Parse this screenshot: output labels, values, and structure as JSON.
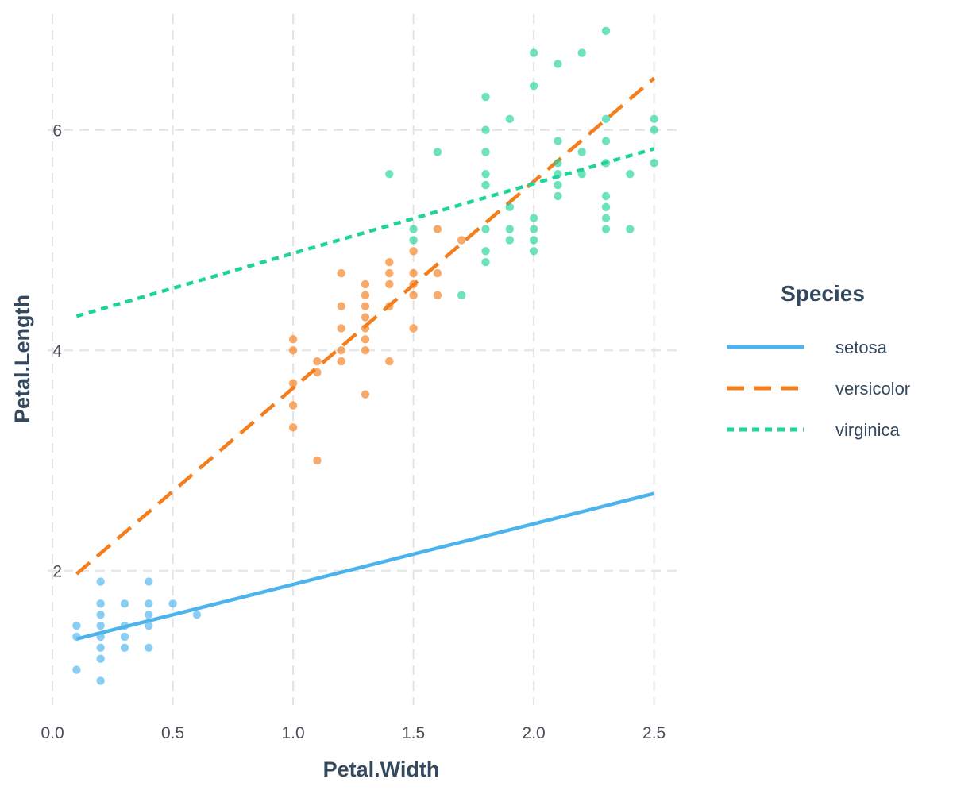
{
  "chart_data": {
    "type": "scatter",
    "title": "",
    "xlabel": "Petal.Width",
    "ylabel": "Petal.Length",
    "xlim": [
      -0.02,
      2.62
    ],
    "ylim": [
      0.78,
      7.05
    ],
    "x_ticks": [
      {
        "value": 0.0,
        "label": "0.0"
      },
      {
        "value": 0.5,
        "label": "0.5"
      },
      {
        "value": 1.0,
        "label": "1.0"
      },
      {
        "value": 1.5,
        "label": "1.5"
      },
      {
        "value": 2.0,
        "label": "2.0"
      },
      {
        "value": 2.5,
        "label": "2.5"
      }
    ],
    "y_ticks": [
      {
        "value": 2,
        "label": "2"
      },
      {
        "value": 4,
        "label": "4"
      },
      {
        "value": 6,
        "label": "6"
      }
    ],
    "grid": true,
    "grid_style": "dashed",
    "legend": {
      "title": "Species",
      "position": "right"
    },
    "series": [
      {
        "name": "setosa",
        "color": "#4db3ed",
        "line_style": "solid",
        "trend_line": {
          "x": [
            0.1,
            2.5
          ],
          "y": [
            1.38,
            2.7
          ]
        },
        "points": [
          [
            0.1,
            1.5
          ],
          [
            0.1,
            1.4
          ],
          [
            0.1,
            1.1
          ],
          [
            0.2,
            1.9
          ],
          [
            0.2,
            1.7
          ],
          [
            0.2,
            1.6
          ],
          [
            0.2,
            1.5
          ],
          [
            0.2,
            1.4
          ],
          [
            0.2,
            1.3
          ],
          [
            0.2,
            1.2
          ],
          [
            0.2,
            1.0
          ],
          [
            0.3,
            1.7
          ],
          [
            0.3,
            1.5
          ],
          [
            0.3,
            1.4
          ],
          [
            0.3,
            1.3
          ],
          [
            0.4,
            1.9
          ],
          [
            0.4,
            1.7
          ],
          [
            0.4,
            1.6
          ],
          [
            0.4,
            1.5
          ],
          [
            0.4,
            1.3
          ],
          [
            0.5,
            1.7
          ],
          [
            0.6,
            1.6
          ]
        ]
      },
      {
        "name": "versicolor",
        "color": "#f47d1c",
        "line_style": "dashed",
        "trend_line": {
          "x": [
            0.1,
            2.5
          ],
          "y": [
            1.97,
            6.47
          ]
        },
        "points": [
          [
            1.0,
            4.1
          ],
          [
            1.0,
            4.0
          ],
          [
            1.0,
            3.7
          ],
          [
            1.0,
            3.5
          ],
          [
            1.0,
            3.3
          ],
          [
            1.1,
            3.9
          ],
          [
            1.1,
            3.8
          ],
          [
            1.1,
            3.0
          ],
          [
            1.2,
            4.7
          ],
          [
            1.2,
            4.4
          ],
          [
            1.2,
            4.2
          ],
          [
            1.2,
            4.0
          ],
          [
            1.2,
            3.9
          ],
          [
            1.3,
            4.6
          ],
          [
            1.3,
            4.5
          ],
          [
            1.3,
            4.4
          ],
          [
            1.3,
            4.3
          ],
          [
            1.3,
            4.2
          ],
          [
            1.3,
            4.1
          ],
          [
            1.3,
            4.0
          ],
          [
            1.3,
            3.6
          ],
          [
            1.4,
            4.8
          ],
          [
            1.4,
            4.7
          ],
          [
            1.4,
            4.6
          ],
          [
            1.4,
            4.4
          ],
          [
            1.4,
            3.9
          ],
          [
            1.5,
            4.9
          ],
          [
            1.5,
            4.7
          ],
          [
            1.5,
            4.6
          ],
          [
            1.5,
            4.5
          ],
          [
            1.5,
            4.2
          ],
          [
            1.6,
            5.1
          ],
          [
            1.6,
            4.7
          ],
          [
            1.6,
            4.5
          ],
          [
            1.7,
            5.0
          ]
        ]
      },
      {
        "name": "virginica",
        "color": "#1fd49a",
        "line_style": "dotted",
        "trend_line": {
          "x": [
            0.1,
            2.5
          ],
          "y": [
            4.31,
            5.83
          ]
        },
        "points": [
          [
            1.4,
            5.6
          ],
          [
            1.5,
            5.1
          ],
          [
            1.5,
            5.0
          ],
          [
            1.6,
            5.8
          ],
          [
            1.7,
            4.5
          ],
          [
            1.8,
            6.3
          ],
          [
            1.8,
            6.0
          ],
          [
            1.8,
            5.8
          ],
          [
            1.8,
            5.6
          ],
          [
            1.8,
            5.5
          ],
          [
            1.8,
            5.1
          ],
          [
            1.8,
            4.9
          ],
          [
            1.8,
            4.8
          ],
          [
            1.9,
            6.1
          ],
          [
            1.9,
            5.3
          ],
          [
            1.9,
            5.1
          ],
          [
            1.9,
            5.0
          ],
          [
            2.0,
            6.7
          ],
          [
            2.0,
            6.4
          ],
          [
            2.0,
            5.2
          ],
          [
            2.0,
            5.1
          ],
          [
            2.0,
            5.0
          ],
          [
            2.0,
            4.9
          ],
          [
            2.1,
            6.6
          ],
          [
            2.1,
            5.9
          ],
          [
            2.1,
            5.7
          ],
          [
            2.1,
            5.6
          ],
          [
            2.1,
            5.5
          ],
          [
            2.1,
            5.4
          ],
          [
            2.2,
            6.7
          ],
          [
            2.2,
            5.8
          ],
          [
            2.2,
            5.6
          ],
          [
            2.3,
            6.9
          ],
          [
            2.3,
            6.1
          ],
          [
            2.3,
            5.9
          ],
          [
            2.3,
            5.7
          ],
          [
            2.3,
            5.4
          ],
          [
            2.3,
            5.3
          ],
          [
            2.3,
            5.2
          ],
          [
            2.3,
            5.1
          ],
          [
            2.4,
            5.6
          ],
          [
            2.4,
            5.1
          ],
          [
            2.5,
            6.1
          ],
          [
            2.5,
            6.0
          ],
          [
            2.5,
            5.7
          ]
        ]
      }
    ]
  }
}
